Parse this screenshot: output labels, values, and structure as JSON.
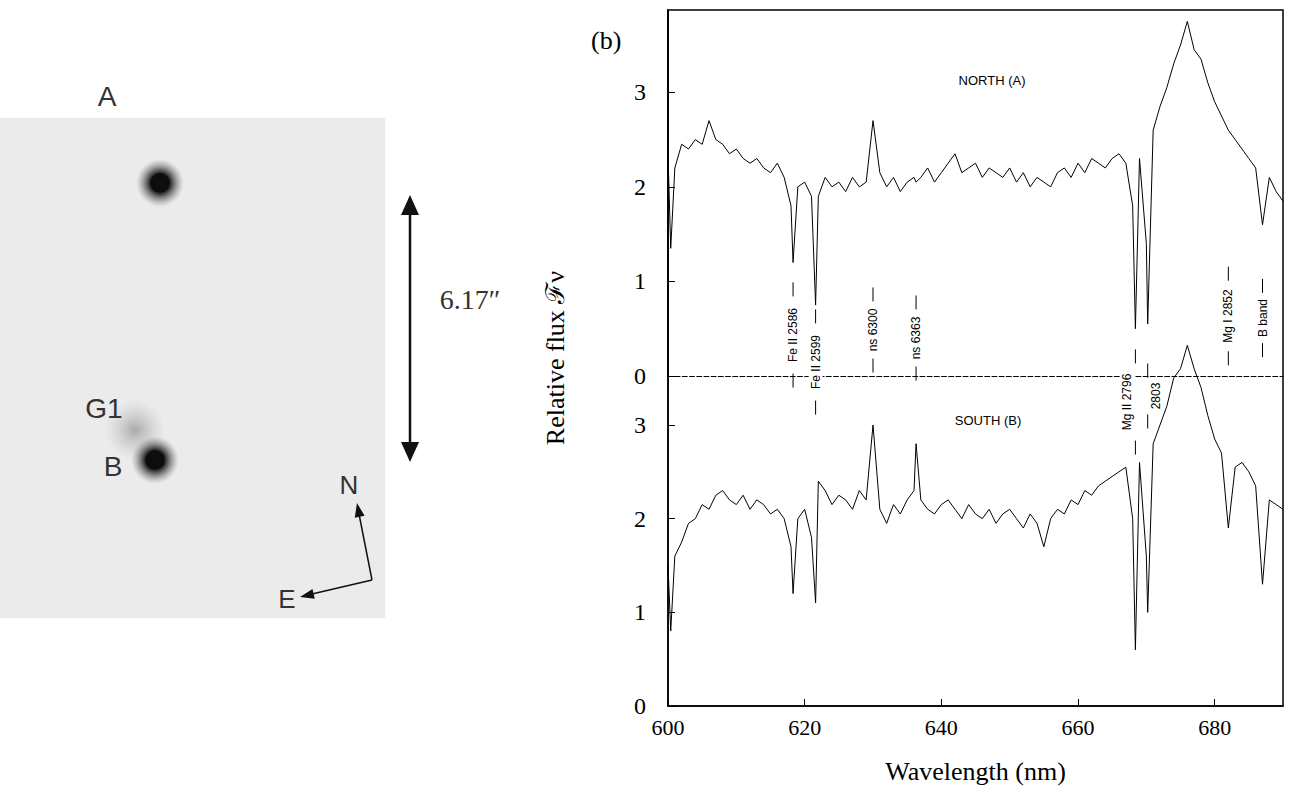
{
  "chart_data": {
    "type": "line",
    "title": "(b)",
    "x_label": "Wavelength (nm)",
    "y_label": "Relative flux ℱν",
    "x": [
      600,
      600.4,
      601,
      602,
      603,
      604,
      605,
      606,
      607,
      608,
      609,
      610,
      611,
      612,
      613,
      614,
      615,
      616,
      617,
      618,
      618.3,
      619,
      620,
      621,
      621.6,
      622,
      623,
      624,
      625,
      626,
      627,
      628,
      629,
      630,
      631,
      632,
      633,
      634,
      635,
      636,
      636.3,
      637,
      638,
      639,
      640,
      641,
      642,
      643,
      644,
      645,
      646,
      647,
      648,
      649,
      650,
      651,
      652,
      653,
      654,
      655,
      656,
      657,
      658,
      659,
      660,
      661,
      662,
      663,
      664,
      665,
      666,
      667,
      668,
      668.4,
      669,
      670,
      670.2,
      671,
      672,
      673,
      674,
      675,
      676,
      677,
      678,
      679,
      680,
      681,
      682,
      683,
      684,
      685,
      686,
      687,
      688,
      689,
      690
    ],
    "xlim": [
      600,
      690
    ],
    "xticks": [
      600,
      620,
      640,
      660,
      680
    ],
    "ylim": [
      0,
      7.43
    ],
    "yticks": [
      0,
      1,
      2,
      3
    ],
    "y2lim": [
      0,
      3.87
    ],
    "y2ticks": [
      0,
      1,
      2,
      3
    ],
    "grid": false,
    "series": [
      {
        "name": "NORTH (A)",
        "color": "#000000",
        "axis": "y2",
        "values": [
          2.35,
          1.35,
          2.2,
          2.45,
          2.4,
          2.5,
          2.45,
          2.7,
          2.5,
          2.45,
          2.35,
          2.4,
          2.3,
          2.25,
          2.3,
          2.2,
          2.15,
          2.25,
          2.1,
          1.8,
          1.2,
          2.0,
          2.05,
          1.9,
          0.75,
          1.9,
          2.1,
          2.0,
          2.05,
          1.95,
          2.1,
          2.0,
          2.05,
          2.7,
          2.15,
          2.0,
          2.1,
          1.95,
          2.05,
          2.1,
          2.05,
          2.1,
          2.2,
          2.05,
          2.15,
          2.25,
          2.35,
          2.15,
          2.2,
          2.25,
          2.1,
          2.2,
          2.15,
          2.1,
          2.2,
          2.05,
          2.15,
          2.0,
          2.1,
          2.05,
          2.0,
          2.15,
          2.2,
          2.1,
          2.25,
          2.15,
          2.3,
          2.25,
          2.2,
          2.3,
          2.35,
          2.25,
          1.8,
          0.5,
          2.3,
          1.4,
          0.55,
          2.6,
          2.85,
          3.05,
          3.3,
          3.5,
          3.75,
          3.45,
          3.35,
          3.1,
          2.9,
          2.75,
          2.6,
          2.5,
          2.4,
          2.3,
          2.2,
          1.6,
          2.1,
          1.95,
          1.85
        ]
      },
      {
        "name": "SOUTH (B)",
        "color": "#000000",
        "values": [
          1.5,
          0.8,
          1.6,
          1.75,
          1.95,
          2.0,
          2.15,
          2.1,
          2.25,
          2.3,
          2.2,
          2.15,
          2.25,
          2.1,
          2.2,
          2.15,
          2.05,
          2.1,
          2.0,
          1.7,
          1.2,
          2.0,
          2.1,
          1.8,
          1.1,
          2.4,
          2.3,
          2.15,
          2.25,
          2.2,
          2.1,
          2.3,
          2.2,
          3.0,
          2.1,
          1.95,
          2.15,
          2.05,
          2.2,
          2.3,
          2.8,
          2.2,
          2.1,
          2.05,
          2.15,
          2.2,
          2.1,
          2.0,
          2.15,
          2.05,
          2.0,
          2.1,
          1.95,
          2.05,
          2.1,
          2.0,
          1.9,
          2.05,
          1.95,
          1.7,
          2.0,
          2.1,
          2.05,
          2.2,
          2.15,
          2.3,
          2.25,
          2.35,
          2.4,
          2.45,
          2.5,
          2.55,
          2.0,
          0.6,
          2.6,
          1.6,
          1.0,
          2.8,
          3.0,
          3.2,
          3.5,
          3.6,
          3.85,
          3.6,
          3.4,
          3.1,
          2.85,
          2.7,
          1.9,
          2.55,
          2.6,
          2.5,
          2.35,
          1.3,
          2.2,
          2.15,
          2.1
        ]
      }
    ],
    "annotations": [
      {
        "x": 618.3,
        "text": "Fe II 2586"
      },
      {
        "x": 621.6,
        "text": "Fe II 2599"
      },
      {
        "x": 630,
        "text": "ns 6300"
      },
      {
        "x": 636.3,
        "text": "ns 6363"
      },
      {
        "x": 668.4,
        "text": "Mg II 2796"
      },
      {
        "x": 670.2,
        "text": "2803"
      },
      {
        "x": 682,
        "text": "Mg I 2852"
      },
      {
        "x": 687,
        "text": "B band"
      }
    ]
  },
  "image_panel": {
    "images": [
      "A",
      "G1",
      "B"
    ],
    "separation": "6.17″",
    "compass": [
      "N",
      "E"
    ]
  }
}
